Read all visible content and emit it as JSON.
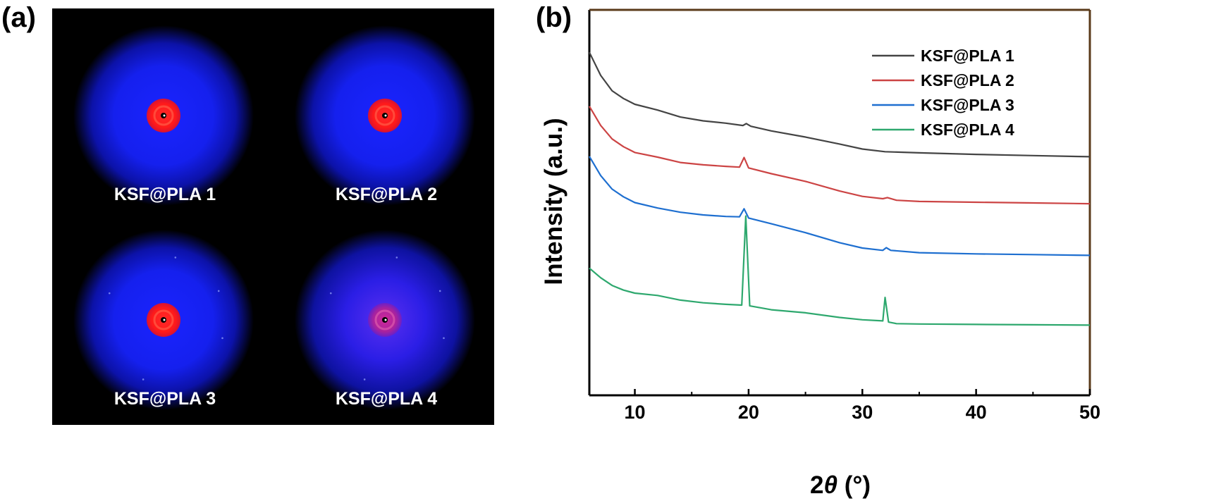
{
  "panel_a": {
    "label": "(a)",
    "patterns": [
      {
        "label": "KSF@PLA 1",
        "halo": "#0a14f5",
        "core": "#ff1e1e"
      },
      {
        "label": "KSF@PLA 2",
        "halo": "#0a14f5",
        "core": "#ff1e1e"
      },
      {
        "label": "KSF@PLA 3",
        "halo": "#0a14f5",
        "core": "#ff1e1e"
      },
      {
        "label": "KSF@PLA 4",
        "halo": "#3a22e8",
        "core": "#c0209a"
      }
    ]
  },
  "panel_b": {
    "label": "(b)"
  },
  "chart_data": {
    "type": "line",
    "xlabel_prefix": "2",
    "xlabel_symbol": "θ",
    "xlabel_suffix": " (°)",
    "ylabel": "Intensity (a.u.)",
    "xlim": [
      6,
      50
    ],
    "ylim": [
      0,
      100
    ],
    "xticks": [
      10,
      20,
      30,
      40,
      50
    ],
    "grid": false,
    "legend_position": "top-right",
    "series": [
      {
        "name": "KSF@PLA 1",
        "color": "#444444",
        "points": [
          [
            6,
            89
          ],
          [
            7,
            83
          ],
          [
            8,
            79
          ],
          [
            9,
            77
          ],
          [
            10,
            75.5
          ],
          [
            12,
            74
          ],
          [
            14,
            72.2
          ],
          [
            16,
            71.2
          ],
          [
            18,
            70.6
          ],
          [
            19.5,
            70
          ],
          [
            19.8,
            70.5
          ],
          [
            20.2,
            69.8
          ],
          [
            22,
            68.6
          ],
          [
            25,
            67
          ],
          [
            28,
            65.2
          ],
          [
            30,
            63.9
          ],
          [
            32,
            63.2
          ],
          [
            35,
            62.9
          ],
          [
            40,
            62.5
          ],
          [
            45,
            62.2
          ],
          [
            50,
            61.9
          ]
        ]
      },
      {
        "name": "KSF@PLA 2",
        "color": "#cc4444",
        "points": [
          [
            6,
            75
          ],
          [
            7,
            70
          ],
          [
            8,
            66.5
          ],
          [
            9,
            64.5
          ],
          [
            10,
            63
          ],
          [
            12,
            61.8
          ],
          [
            14,
            60.4
          ],
          [
            16,
            59.8
          ],
          [
            18,
            59.4
          ],
          [
            19.2,
            59.2
          ],
          [
            19.6,
            61.7
          ],
          [
            20,
            59
          ],
          [
            22,
            57.5
          ],
          [
            25,
            55.5
          ],
          [
            28,
            53
          ],
          [
            30,
            51.6
          ],
          [
            31.8,
            51
          ],
          [
            32.2,
            51.3
          ],
          [
            33,
            50.6
          ],
          [
            35,
            50.3
          ],
          [
            40,
            50.1
          ],
          [
            45,
            49.9
          ],
          [
            50,
            49.7
          ]
        ]
      },
      {
        "name": "KSF@PLA 3",
        "color": "#1e6fd0",
        "points": [
          [
            6,
            62
          ],
          [
            7,
            57
          ],
          [
            8,
            53.5
          ],
          [
            9,
            51.5
          ],
          [
            10,
            50
          ],
          [
            12,
            48.6
          ],
          [
            14,
            47.5
          ],
          [
            16,
            46.8
          ],
          [
            18,
            46.4
          ],
          [
            19.2,
            46.3
          ],
          [
            19.6,
            48.4
          ],
          [
            20,
            46
          ],
          [
            22,
            44.5
          ],
          [
            25,
            42.2
          ],
          [
            28,
            39.6
          ],
          [
            30,
            38.2
          ],
          [
            31.8,
            37.6
          ],
          [
            32.1,
            38.3
          ],
          [
            32.5,
            37.6
          ],
          [
            35,
            37
          ],
          [
            40,
            36.7
          ],
          [
            45,
            36.5
          ],
          [
            50,
            36.3
          ]
        ]
      },
      {
        "name": "KSF@PLA 4",
        "color": "#2ea86e",
        "points": [
          [
            6,
            33
          ],
          [
            7,
            30.5
          ],
          [
            8,
            28.5
          ],
          [
            9,
            27.3
          ],
          [
            10,
            26.5
          ],
          [
            12,
            25.9
          ],
          [
            14,
            24.7
          ],
          [
            16,
            24
          ],
          [
            18,
            23.6
          ],
          [
            19.4,
            23.4
          ],
          [
            19.75,
            46.5
          ],
          [
            20.1,
            23.2
          ],
          [
            22,
            22.2
          ],
          [
            25,
            21.4
          ],
          [
            28,
            20.2
          ],
          [
            30,
            19.6
          ],
          [
            31.8,
            19.3
          ],
          [
            32,
            25.4
          ],
          [
            32.3,
            19
          ],
          [
            33,
            18.6
          ],
          [
            35,
            18.5
          ],
          [
            40,
            18.4
          ],
          [
            45,
            18.3
          ],
          [
            50,
            18.2
          ]
        ]
      }
    ]
  }
}
